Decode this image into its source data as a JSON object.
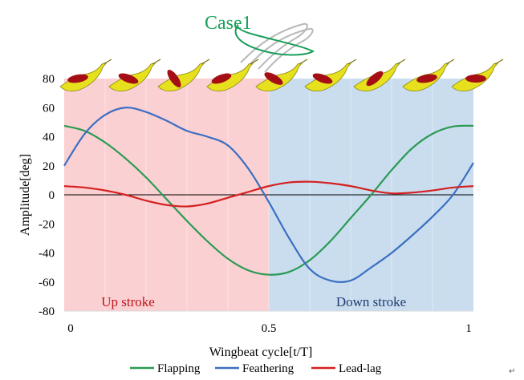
{
  "case_label": "Case1",
  "colors": {
    "upstroke_bg": "#fad0d2",
    "downstroke_bg": "#c9ddef",
    "flapping": "#2a9a52",
    "feathering": "#3c6fc1",
    "leadlag": "#d42020",
    "case_label": "#1aa05a",
    "bird_body": "#e6e11c",
    "wing": "#a40e14"
  },
  "chart_data": {
    "type": "line",
    "xlabel": "Wingbeat cycle[t/T]",
    "ylabel": "Amplitude[deg]",
    "xlim": [
      0,
      1
    ],
    "ylim": [
      -80,
      80
    ],
    "x_ticks": [
      "0",
      "0.5",
      "1"
    ],
    "y_ticks": [
      "80",
      "60",
      "40",
      "20",
      "0",
      "-20",
      "-40",
      "-60",
      "-80"
    ],
    "regions": [
      {
        "label": "Up stroke",
        "from": 0,
        "to": 0.5
      },
      {
        "label": "Down stroke",
        "from": 0.5,
        "to": 1
      }
    ],
    "legend_position": "bottom",
    "x": [
      0,
      0.05,
      0.1,
      0.15,
      0.2,
      0.25,
      0.3,
      0.35,
      0.4,
      0.45,
      0.5,
      0.55,
      0.6,
      0.65,
      0.7,
      0.75,
      0.8,
      0.85,
      0.9,
      0.95,
      1.0
    ],
    "series": [
      {
        "name": "Flapping",
        "color_key": "flapping",
        "values": [
          47.5,
          44,
          36,
          25,
          12,
          -3,
          -18,
          -32,
          -44,
          -52,
          -55,
          -53,
          -45,
          -32,
          -16,
          0,
          17,
          32,
          42,
          47,
          47.5
        ]
      },
      {
        "name": "Feathering",
        "color_key": "feathering",
        "values": [
          20,
          42,
          55,
          60,
          57,
          51,
          44,
          40,
          34,
          18,
          -5,
          -30,
          -51,
          -59,
          -59,
          -50,
          -40,
          -28,
          -15,
          0,
          22
        ]
      },
      {
        "name": "Lead-lag",
        "color_key": "leadlag",
        "values": [
          6,
          5,
          3,
          0,
          -4,
          -7,
          -8,
          -6,
          -2,
          2,
          6,
          8.5,
          9,
          8,
          6,
          3,
          1,
          1.5,
          3,
          5,
          6
        ]
      }
    ]
  }
}
